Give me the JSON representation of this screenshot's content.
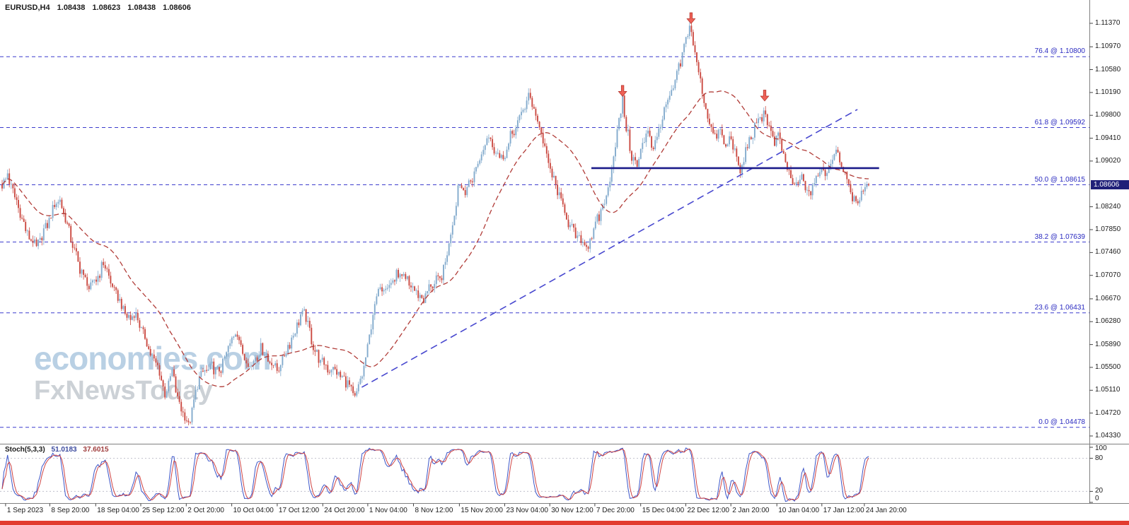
{
  "header": {
    "symbol": "EURUSD,H4",
    "open": "1.08438",
    "high": "1.08623",
    "low": "1.08438",
    "close": "1.08606"
  },
  "watermark": {
    "line1": "economies.com",
    "line2": "FxNewsToday"
  },
  "price_axis": {
    "ticks": [
      "1.11370",
      "1.10970",
      "1.10580",
      "1.10190",
      "1.09800",
      "1.09410",
      "1.09020",
      "1.08240",
      "1.07850",
      "1.07460",
      "1.07070",
      "1.06670",
      "1.06280",
      "1.05890",
      "1.05500",
      "1.05110",
      "1.04720",
      "1.04330"
    ],
    "current_price": "1.08606"
  },
  "time_axis": {
    "labels": [
      {
        "text": "1 Sep 2023",
        "t": 0.004
      },
      {
        "text": "8 Sep 20:00",
        "t": 0.055
      },
      {
        "text": "18 Sep 04:00",
        "t": 0.108
      },
      {
        "text": "25 Sep 12:00",
        "t": 0.16
      },
      {
        "text": "2 Oct 20:00",
        "t": 0.2125
      },
      {
        "text": "10 Oct 04:00",
        "t": 0.265
      },
      {
        "text": "17 Oct 12:00",
        "t": 0.3175
      },
      {
        "text": "24 Oct 20:00",
        "t": 0.37
      },
      {
        "text": "1 Nov 04:00",
        "t": 0.422
      },
      {
        "text": "8 Nov 12:00",
        "t": 0.4747
      },
      {
        "text": "15 Nov 20:00",
        "t": 0.5277
      },
      {
        "text": "23 Nov 04:00",
        "t": 0.58
      },
      {
        "text": "30 Nov 12:00",
        "t": 0.632
      },
      {
        "text": "7 Dec 20:00",
        "t": 0.684
      },
      {
        "text": "15 Dec 04:00",
        "t": 0.7369
      },
      {
        "text": "22 Dec 12:00",
        "t": 0.789
      },
      {
        "text": "2 Jan 20:00",
        "t": 0.841
      },
      {
        "text": "10 Jan 04:00",
        "t": 0.894
      },
      {
        "text": "17 Jan 12:00",
        "t": 0.946
      },
      {
        "text": "24 Jan 20:00",
        "t": 0.995
      }
    ]
  },
  "fib_levels": [
    {
      "label": "76.4 @ 1.10800",
      "price": 1.108
    },
    {
      "label": "61.8 @ 1.09592",
      "price": 1.09592
    },
    {
      "label": "50.0 @ 1.08615",
      "price": 1.08615
    },
    {
      "label": "38.2 @ 1.07639",
      "price": 1.07639
    },
    {
      "label": "23.6 @ 1.06431",
      "price": 1.06431
    },
    {
      "label": "0.0 @ 1.04478",
      "price": 1.04478
    }
  ],
  "stoch": {
    "name": "Stoch(5,3,3)",
    "k_value": "51.0183",
    "d_value": "37.6015",
    "scale": [
      "100",
      "80",
      "20",
      "0"
    ],
    "dotted_levels": [
      80,
      20
    ]
  },
  "colors": {
    "up_candle": "#83abcd",
    "down_candle": "#cb4a42",
    "ma": "#b13c38",
    "fib": "#3c3ccd",
    "fib_label": "#2a2ac0",
    "trendline": "#4848cf",
    "resistance": "#1b1b8a",
    "stoch_k": "#3c55c8",
    "stoch_d": "#cf4343",
    "stoch_k_text": "#3b4a9e",
    "stoch_d_text": "#9e3b3b",
    "stoch_level": "#c0c0cc",
    "badge_bg": "#1f1f78",
    "arrow": "#ee6157",
    "arrow_border": "#b23229",
    "bottom_bar": "#e23b2e",
    "axis_text": "#1b1b1b",
    "watermark1": "#b9d0e4",
    "watermark2": "#ccd1d6",
    "separator": "#808080"
  },
  "chart_data": {
    "type": "candlestick",
    "symbol": "EURUSD",
    "timeframe": "H4",
    "title": "EURUSD,H4",
    "ohlc_header": [
      1.08438,
      1.08623,
      1.08438,
      1.08606
    ],
    "last_price": 1.08606,
    "ylim": [
      1.0433,
      1.1137
    ],
    "x_range": [
      "1 Sep 2023",
      "24 Jan 20:00"
    ],
    "price_path": [
      [
        0.0,
        1.0862
      ],
      [
        0.006,
        1.0881
      ],
      [
        0.014,
        1.0845
      ],
      [
        0.022,
        1.0808
      ],
      [
        0.03,
        1.0778
      ],
      [
        0.04,
        1.0752
      ],
      [
        0.05,
        1.0788
      ],
      [
        0.058,
        1.082
      ],
      [
        0.066,
        1.0838
      ],
      [
        0.075,
        1.0795
      ],
      [
        0.083,
        1.0748
      ],
      [
        0.092,
        1.0712
      ],
      [
        0.102,
        1.0682
      ],
      [
        0.11,
        1.0706
      ],
      [
        0.118,
        1.073
      ],
      [
        0.127,
        1.0688
      ],
      [
        0.136,
        1.0658
      ],
      [
        0.146,
        1.0635
      ],
      [
        0.155,
        1.0642
      ],
      [
        0.163,
        1.0605
      ],
      [
        0.172,
        1.0572
      ],
      [
        0.18,
        1.0548
      ],
      [
        0.188,
        1.0502
      ],
      [
        0.196,
        1.0542
      ],
      [
        0.204,
        1.049
      ],
      [
        0.211,
        1.0462
      ],
      [
        0.216,
        1.045
      ],
      [
        0.222,
        1.05
      ],
      [
        0.23,
        1.0538
      ],
      [
        0.24,
        1.0552
      ],
      [
        0.25,
        1.054
      ],
      [
        0.26,
        1.0578
      ],
      [
        0.27,
        1.0618
      ],
      [
        0.278,
        1.0572
      ],
      [
        0.288,
        1.0552
      ],
      [
        0.298,
        1.0585
      ],
      [
        0.308,
        1.0562
      ],
      [
        0.318,
        1.0548
      ],
      [
        0.328,
        1.058
      ],
      [
        0.338,
        1.0615
      ],
      [
        0.348,
        1.0648
      ],
      [
        0.358,
        1.0592
      ],
      [
        0.368,
        1.0558
      ],
      [
        0.378,
        1.0548
      ],
      [
        0.388,
        1.0538
      ],
      [
        0.398,
        1.0525
      ],
      [
        0.406,
        1.0496
      ],
      [
        0.414,
        1.0528
      ],
      [
        0.421,
        1.0572
      ],
      [
        0.428,
        1.064
      ],
      [
        0.436,
        1.0692
      ],
      [
        0.446,
        1.0685
      ],
      [
        0.456,
        1.071
      ],
      [
        0.466,
        1.0698
      ],
      [
        0.476,
        1.0682
      ],
      [
        0.486,
        1.0668
      ],
      [
        0.496,
        1.0692
      ],
      [
        0.506,
        1.0702
      ],
      [
        0.514,
        1.0748
      ],
      [
        0.521,
        1.0805
      ],
      [
        0.527,
        1.0868
      ],
      [
        0.535,
        1.0852
      ],
      [
        0.544,
        1.0878
      ],
      [
        0.553,
        1.0912
      ],
      [
        0.562,
        1.0948
      ],
      [
        0.57,
        1.0918
      ],
      [
        0.578,
        1.0905
      ],
      [
        0.586,
        1.094
      ],
      [
        0.594,
        1.0962
      ],
      [
        0.602,
        1.0992
      ],
      [
        0.609,
        1.1012
      ],
      [
        0.616,
        1.0982
      ],
      [
        0.623,
        1.0942
      ],
      [
        0.63,
        1.0902
      ],
      [
        0.638,
        1.0862
      ],
      [
        0.646,
        1.0828
      ],
      [
        0.654,
        1.0798
      ],
      [
        0.662,
        1.0775
      ],
      [
        0.67,
        1.0762
      ],
      [
        0.676,
        1.0757
      ],
      [
        0.682,
        1.0782
      ],
      [
        0.69,
        1.0812
      ],
      [
        0.698,
        1.0845
      ],
      [
        0.705,
        1.0902
      ],
      [
        0.711,
        1.0968
      ],
      [
        0.716,
        1.1006
      ],
      [
        0.721,
        1.0955
      ],
      [
        0.727,
        1.0908
      ],
      [
        0.733,
        1.0892
      ],
      [
        0.739,
        1.0928
      ],
      [
        0.745,
        1.0958
      ],
      [
        0.751,
        1.0922
      ],
      [
        0.757,
        1.0948
      ],
      [
        0.764,
        1.0988
      ],
      [
        0.771,
        1.1012
      ],
      [
        0.778,
        1.1042
      ],
      [
        0.784,
        1.1075
      ],
      [
        0.79,
        1.1112
      ],
      [
        0.794,
        1.1138
      ],
      [
        0.799,
        1.1092
      ],
      [
        0.805,
        1.1048
      ],
      [
        0.811,
        1.0998
      ],
      [
        0.817,
        1.0962
      ],
      [
        0.823,
        1.0938
      ],
      [
        0.829,
        1.0958
      ],
      [
        0.835,
        1.0922
      ],
      [
        0.841,
        1.0946
      ],
      [
        0.847,
        1.0905
      ],
      [
        0.852,
        1.0878
      ],
      [
        0.858,
        1.092
      ],
      [
        0.865,
        1.0948
      ],
      [
        0.872,
        1.0965
      ],
      [
        0.879,
        1.0988
      ],
      [
        0.885,
        1.0958
      ],
      [
        0.891,
        1.0932
      ],
      [
        0.897,
        1.0942
      ],
      [
        0.903,
        1.0908
      ],
      [
        0.909,
        1.0872
      ],
      [
        0.915,
        1.0852
      ],
      [
        0.921,
        1.0876
      ],
      [
        0.927,
        1.0856
      ],
      [
        0.933,
        1.0846
      ],
      [
        0.939,
        1.0872
      ],
      [
        0.945,
        1.0892
      ],
      [
        0.951,
        1.088
      ],
      [
        0.957,
        1.0906
      ],
      [
        0.963,
        1.0926
      ],
      [
        0.969,
        1.0896
      ],
      [
        0.975,
        1.0866
      ],
      [
        0.981,
        1.0846
      ],
      [
        0.987,
        1.0826
      ],
      [
        0.993,
        1.0854
      ],
      [
        1.0,
        1.08606
      ]
    ],
    "moving_average": {
      "style": "dashed",
      "window": 36
    },
    "fib_retracement": {
      "levels": [
        [
          76.4,
          1.108
        ],
        [
          61.8,
          1.09592
        ],
        [
          50.0,
          1.08615
        ],
        [
          38.2,
          1.07639
        ],
        [
          23.6,
          1.06431
        ],
        [
          0.0,
          1.04478
        ]
      ]
    },
    "trendline": {
      "t1": 0.415,
      "p1": 1.0516,
      "t2": 0.987,
      "p2": 1.099
    },
    "resistance_line": {
      "t1": 0.68,
      "t2": 1.012,
      "price": 1.089
    },
    "sell_arrows": [
      {
        "t": 0.716,
        "price": 1.1022
      },
      {
        "t": 0.795,
        "price": 1.1146
      },
      {
        "t": 0.88,
        "price": 1.1014
      }
    ],
    "stochastic": {
      "params": [
        5,
        3,
        3
      ],
      "k_last": 51.0183,
      "d_last": 37.6015,
      "range": [
        0,
        100
      ],
      "levels": [
        20,
        80
      ]
    }
  }
}
